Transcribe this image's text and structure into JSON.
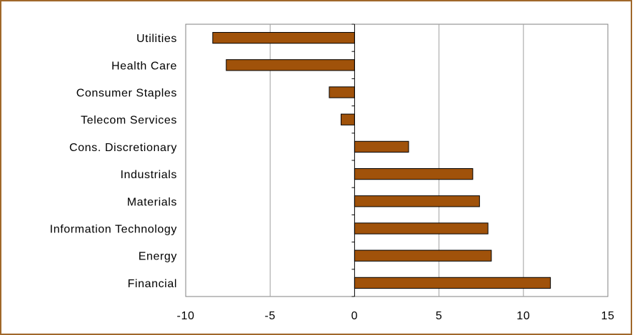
{
  "header": {
    "title_fragment": ""
  },
  "chart_data": {
    "type": "bar",
    "orientation": "horizontal",
    "categories": [
      "Utilities",
      "Health Care",
      "Consumer Staples",
      "Telecom Services",
      "Cons. Discretionary",
      "Industrials",
      "Materials",
      "Information Technology",
      "Energy",
      "Financial"
    ],
    "values": [
      -8.4,
      -7.6,
      -1.5,
      -0.8,
      3.2,
      7.0,
      7.4,
      7.9,
      8.1,
      11.6
    ],
    "xlim": [
      -10,
      15
    ],
    "xticks": [
      "-10",
      "-5",
      "0",
      "5",
      "10",
      "15"
    ],
    "xtick_values": [
      -10,
      -5,
      0,
      5,
      10,
      15
    ],
    "grid": "vertical",
    "bar_color": "#a0520a",
    "bar_edge_color": "#000000",
    "frame_color": "#a0682a"
  }
}
